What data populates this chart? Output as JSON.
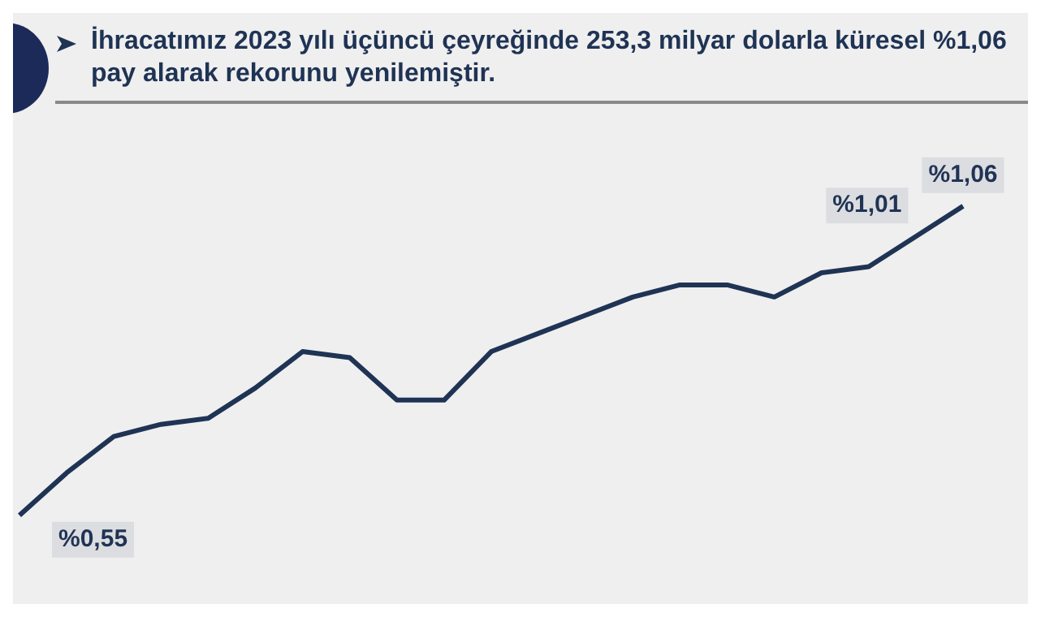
{
  "chart_data": {
    "type": "line",
    "title": "İhracatımız 2023 yılı üçüncü çeyreğinde 253,3 milyar dolarla küresel %1,06 pay alarak rekorunu yenilemiştir.",
    "categories": [
      null,
      null,
      null,
      null,
      null,
      null,
      null,
      null,
      null,
      null,
      null,
      null,
      null,
      null,
      null,
      null,
      null,
      null,
      null,
      null,
      null
    ],
    "series": [
      {
        "color": "#1f3354",
        "values": [
          0.55,
          0.62,
          0.68,
          0.7,
          0.71,
          0.76,
          0.82,
          0.81,
          0.74,
          0.74,
          0.82,
          0.85,
          0.88,
          0.91,
          0.93,
          0.93,
          0.91,
          0.95,
          0.96,
          1.01,
          1.06
        ],
        "value_labels": [
          "%0,55",
          null,
          null,
          null,
          null,
          null,
          null,
          null,
          null,
          null,
          null,
          null,
          null,
          null,
          null,
          null,
          null,
          null,
          null,
          "%1,01",
          "%1,06"
        ]
      }
    ],
    "legend": false,
    "grid": false,
    "marker": "none",
    "line_style": "solid",
    "tick_labels": false
  }
}
